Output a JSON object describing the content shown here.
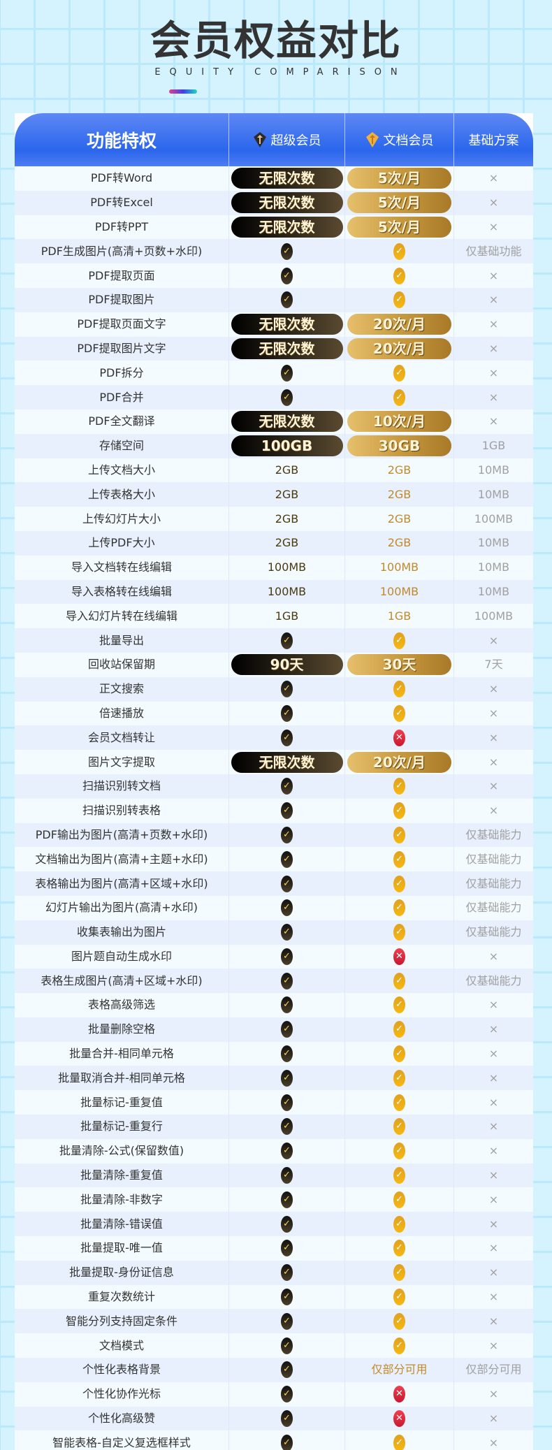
{
  "header": {
    "title": "会员权益对比",
    "subtitle": "EQUITY COMPARISON"
  },
  "table": {
    "columns": [
      "功能特权",
      "超级会员",
      "文档会员",
      "基础方案"
    ],
    "column_icons": [
      "",
      "black-diamond-icon",
      "gold-diamond-icon",
      ""
    ],
    "rows": [
      [
        "PDF转Word",
        {
          "t": "pill",
          "v": "无限次数"
        },
        {
          "t": "pill",
          "v": "5次/月"
        },
        "×"
      ],
      [
        "PDF转Excel",
        {
          "t": "pill",
          "v": "无限次数"
        },
        {
          "t": "pill",
          "v": "5次/月"
        },
        "×"
      ],
      [
        "PDF转PPT",
        {
          "t": "pill",
          "v": "无限次数"
        },
        {
          "t": "pill",
          "v": "5次/月"
        },
        "×"
      ],
      [
        "PDF生成图片(高清+页数+水印)",
        {
          "t": "check"
        },
        {
          "t": "check"
        },
        "仅基础功能"
      ],
      [
        "PDF提取页面",
        {
          "t": "check"
        },
        {
          "t": "check"
        },
        "×"
      ],
      [
        "PDF提取图片",
        {
          "t": "check"
        },
        {
          "t": "check"
        },
        "×"
      ],
      [
        "PDF提取页面文字",
        {
          "t": "pill",
          "v": "无限次数"
        },
        {
          "t": "pill",
          "v": "20次/月"
        },
        "×"
      ],
      [
        "PDF提取图片文字",
        {
          "t": "pill",
          "v": "无限次数"
        },
        {
          "t": "pill",
          "v": "20次/月"
        },
        "×"
      ],
      [
        "PDF拆分",
        {
          "t": "check"
        },
        {
          "t": "check"
        },
        "×"
      ],
      [
        "PDF合并",
        {
          "t": "check"
        },
        {
          "t": "check"
        },
        "×"
      ],
      [
        "PDF全文翻译",
        {
          "t": "pill",
          "v": "无限次数"
        },
        {
          "t": "pill",
          "v": "10次/月"
        },
        "×"
      ],
      [
        "存储空间",
        {
          "t": "pill",
          "v": "100GB"
        },
        {
          "t": "pill",
          "v": "30GB"
        },
        "1GB"
      ],
      [
        "上传文档大小",
        {
          "t": "text",
          "v": "2GB"
        },
        {
          "t": "text",
          "v": "2GB"
        },
        "10MB"
      ],
      [
        "上传表格大小",
        {
          "t": "text",
          "v": "2GB"
        },
        {
          "t": "text",
          "v": "2GB"
        },
        "10MB"
      ],
      [
        "上传幻灯片大小",
        {
          "t": "text",
          "v": "2GB"
        },
        {
          "t": "text",
          "v": "2GB"
        },
        "100MB"
      ],
      [
        "上传PDF大小",
        {
          "t": "text",
          "v": "2GB"
        },
        {
          "t": "text",
          "v": "2GB"
        },
        "10MB"
      ],
      [
        "导入文档转在线编辑",
        {
          "t": "text",
          "v": "100MB"
        },
        {
          "t": "text",
          "v": "100MB"
        },
        "10MB"
      ],
      [
        "导入表格转在线编辑",
        {
          "t": "text",
          "v": "100MB"
        },
        {
          "t": "text",
          "v": "100MB"
        },
        "10MB"
      ],
      [
        "导入幻灯片转在线编辑",
        {
          "t": "text",
          "v": "1GB"
        },
        {
          "t": "text",
          "v": "1GB"
        },
        "100MB"
      ],
      [
        "批量导出",
        {
          "t": "check"
        },
        {
          "t": "check"
        },
        "×"
      ],
      [
        "回收站保留期",
        {
          "t": "pill",
          "v": "90天"
        },
        {
          "t": "pill",
          "v": "30天"
        },
        "7天"
      ],
      [
        "正文搜索",
        {
          "t": "check"
        },
        {
          "t": "check"
        },
        "×"
      ],
      [
        "倍速播放",
        {
          "t": "check"
        },
        {
          "t": "check"
        },
        "×"
      ],
      [
        "会员文档转让",
        {
          "t": "check"
        },
        {
          "t": "cross"
        },
        "×"
      ],
      [
        "图片文字提取",
        {
          "t": "pill",
          "v": "无限次数"
        },
        {
          "t": "pill",
          "v": "20次/月"
        },
        "×"
      ],
      [
        "扫描识别转文档",
        {
          "t": "check"
        },
        {
          "t": "check"
        },
        "×"
      ],
      [
        "扫描识别转表格",
        {
          "t": "check"
        },
        {
          "t": "check"
        },
        "×"
      ],
      [
        "PDF输出为图片(高清+页数+水印)",
        {
          "t": "check"
        },
        {
          "t": "check"
        },
        "仅基础能力"
      ],
      [
        "文档输出为图片(高清+主题+水印)",
        {
          "t": "check"
        },
        {
          "t": "check"
        },
        "仅基础能力"
      ],
      [
        "表格输出为图片(高清+区域+水印)",
        {
          "t": "check"
        },
        {
          "t": "check"
        },
        "仅基础能力"
      ],
      [
        "幻灯片输出为图片(高清+水印)",
        {
          "t": "check"
        },
        {
          "t": "check"
        },
        "仅基础能力"
      ],
      [
        "收集表输出为图片",
        {
          "t": "check"
        },
        {
          "t": "check"
        },
        "仅基础能力"
      ],
      [
        "图片题自动生成水印",
        {
          "t": "check"
        },
        {
          "t": "cross"
        },
        "×"
      ],
      [
        "表格生成图片(高清+区域+水印)",
        {
          "t": "check"
        },
        {
          "t": "check"
        },
        "仅基础能力"
      ],
      [
        "表格高级筛选",
        {
          "t": "check"
        },
        {
          "t": "check"
        },
        "×"
      ],
      [
        "批量删除空格",
        {
          "t": "check"
        },
        {
          "t": "check"
        },
        "×"
      ],
      [
        "批量合并-相同单元格",
        {
          "t": "check"
        },
        {
          "t": "check"
        },
        "×"
      ],
      [
        "批量取消合并-相同单元格",
        {
          "t": "check"
        },
        {
          "t": "check"
        },
        "×"
      ],
      [
        "批量标记-重复值",
        {
          "t": "check"
        },
        {
          "t": "check"
        },
        "×"
      ],
      [
        "批量标记-重复行",
        {
          "t": "check"
        },
        {
          "t": "check"
        },
        "×"
      ],
      [
        "批量清除-公式(保留数值)",
        {
          "t": "check"
        },
        {
          "t": "check"
        },
        "×"
      ],
      [
        "批量清除-重复值",
        {
          "t": "check"
        },
        {
          "t": "check"
        },
        "×"
      ],
      [
        "批量清除-非数字",
        {
          "t": "check"
        },
        {
          "t": "check"
        },
        "×"
      ],
      [
        "批量清除-错误值",
        {
          "t": "check"
        },
        {
          "t": "check"
        },
        "×"
      ],
      [
        "批量提取-唯一值",
        {
          "t": "check"
        },
        {
          "t": "check"
        },
        "×"
      ],
      [
        "批量提取-身份证信息",
        {
          "t": "check"
        },
        {
          "t": "check"
        },
        "×"
      ],
      [
        "重复次数统计",
        {
          "t": "check"
        },
        {
          "t": "check"
        },
        "×"
      ],
      [
        "智能分列支持固定条件",
        {
          "t": "check"
        },
        {
          "t": "check"
        },
        "×"
      ],
      [
        "文档模式",
        {
          "t": "check"
        },
        {
          "t": "check"
        },
        "×"
      ],
      [
        "个性化表格背景",
        {
          "t": "check"
        },
        {
          "t": "text",
          "v": "仅部分可用"
        },
        "仅部分可用"
      ],
      [
        "个性化协作光标",
        {
          "t": "check"
        },
        {
          "t": "cross"
        },
        "×"
      ],
      [
        "个性化高级赞",
        {
          "t": "check"
        },
        {
          "t": "cross"
        },
        "×"
      ],
      [
        "智能表格-自定义复选框样式",
        {
          "t": "check"
        },
        {
          "t": "check"
        },
        "×"
      ]
    ]
  },
  "colors": {
    "header_blue": "#2a66ec",
    "super_black": "#000000",
    "doc_gold": "#c89a40",
    "cross_red": "#e02a3c"
  }
}
